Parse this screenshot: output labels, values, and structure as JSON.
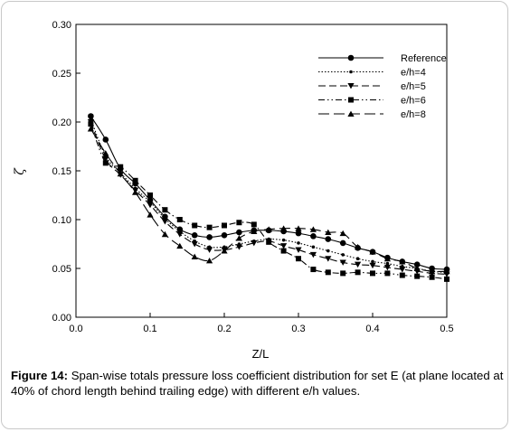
{
  "chart_data": {
    "type": "line",
    "xlabel": "Z/L",
    "ylabel": "ζ",
    "xlim": [
      0.0,
      0.5
    ],
    "ylim": [
      0.0,
      0.3
    ],
    "x_ticks": [
      "0.0",
      "0.1",
      "0.2",
      "0.3",
      "0.4",
      "0.5"
    ],
    "y_ticks": [
      "0.00",
      "0.05",
      "0.10",
      "0.15",
      "0.20",
      "0.25",
      "0.30"
    ],
    "grid": false,
    "legend_position": "top-right",
    "series": [
      {
        "name": "Reference",
        "line_style": "solid",
        "marker": "circle",
        "x": [
          0.02,
          0.04,
          0.06,
          0.08,
          0.1,
          0.12,
          0.14,
          0.16,
          0.18,
          0.2,
          0.22,
          0.24,
          0.26,
          0.28,
          0.3,
          0.32,
          0.34,
          0.36,
          0.38,
          0.4,
          0.42,
          0.44,
          0.46,
          0.48,
          0.5
        ],
        "y": [
          0.206,
          0.182,
          0.152,
          0.137,
          0.12,
          0.103,
          0.09,
          0.084,
          0.082,
          0.084,
          0.087,
          0.089,
          0.089,
          0.088,
          0.086,
          0.083,
          0.08,
          0.076,
          0.071,
          0.067,
          0.061,
          0.057,
          0.054,
          0.05,
          0.049
        ]
      },
      {
        "name": "e/h=4",
        "line_style": "dotted",
        "marker": "small-dot",
        "x": [
          0.02,
          0.04,
          0.06,
          0.08,
          0.1,
          0.12,
          0.14,
          0.16,
          0.18,
          0.2,
          0.22,
          0.24,
          0.26,
          0.28,
          0.3,
          0.32,
          0.34,
          0.36,
          0.38,
          0.4,
          0.42,
          0.44,
          0.46,
          0.48,
          0.5
        ],
        "y": [
          0.203,
          0.165,
          0.148,
          0.132,
          0.118,
          0.101,
          0.088,
          0.078,
          0.072,
          0.072,
          0.075,
          0.078,
          0.08,
          0.079,
          0.076,
          0.072,
          0.068,
          0.064,
          0.06,
          0.057,
          0.055,
          0.052,
          0.05,
          0.047,
          0.046
        ]
      },
      {
        "name": "e/h=5",
        "line_style": "dashed",
        "marker": "triangle-down",
        "x": [
          0.02,
          0.04,
          0.06,
          0.08,
          0.1,
          0.12,
          0.14,
          0.16,
          0.18,
          0.2,
          0.22,
          0.24,
          0.26,
          0.28,
          0.3,
          0.32,
          0.34,
          0.36,
          0.38,
          0.4,
          0.42,
          0.44,
          0.46,
          0.48,
          0.5
        ],
        "y": [
          0.2,
          0.162,
          0.146,
          0.13,
          0.115,
          0.098,
          0.085,
          0.075,
          0.069,
          0.069,
          0.072,
          0.076,
          0.078,
          0.073,
          0.069,
          0.064,
          0.06,
          0.056,
          0.054,
          0.053,
          0.051,
          0.049,
          0.047,
          0.045,
          0.044
        ]
      },
      {
        "name": "e/h=6",
        "line_style": "dash-dot-dot",
        "marker": "square",
        "x": [
          0.02,
          0.04,
          0.06,
          0.08,
          0.1,
          0.12,
          0.14,
          0.16,
          0.18,
          0.2,
          0.22,
          0.24,
          0.26,
          0.28,
          0.3,
          0.32,
          0.34,
          0.36,
          0.38,
          0.4,
          0.42,
          0.44,
          0.46,
          0.48,
          0.5
        ],
        "y": [
          0.198,
          0.158,
          0.154,
          0.14,
          0.125,
          0.11,
          0.1,
          0.094,
          0.092,
          0.094,
          0.097,
          0.095,
          0.077,
          0.068,
          0.06,
          0.049,
          0.046,
          0.045,
          0.046,
          0.045,
          0.045,
          0.043,
          0.042,
          0.041,
          0.039
        ]
      },
      {
        "name": "e/h=8",
        "line_style": "long-dash",
        "marker": "triangle-up",
        "x": [
          0.02,
          0.04,
          0.06,
          0.08,
          0.1,
          0.12,
          0.14,
          0.16,
          0.18,
          0.2,
          0.22,
          0.24,
          0.26,
          0.28,
          0.3,
          0.32,
          0.34,
          0.36,
          0.38,
          0.4,
          0.42,
          0.44,
          0.46,
          0.48,
          0.5
        ],
        "y": [
          0.193,
          0.168,
          0.147,
          0.128,
          0.105,
          0.085,
          0.073,
          0.062,
          0.058,
          0.068,
          0.081,
          0.088,
          0.09,
          0.091,
          0.091,
          0.09,
          0.087,
          0.086,
          0.072,
          0.067,
          0.06,
          0.057,
          0.05,
          0.047,
          0.047
        ]
      }
    ]
  },
  "caption": {
    "label": "Figure 14:",
    "text": " Span-wise totals pressure loss coefficient distribution for set E (at plane located at 40% of chord length behind trailing edge) with different e/h values."
  }
}
